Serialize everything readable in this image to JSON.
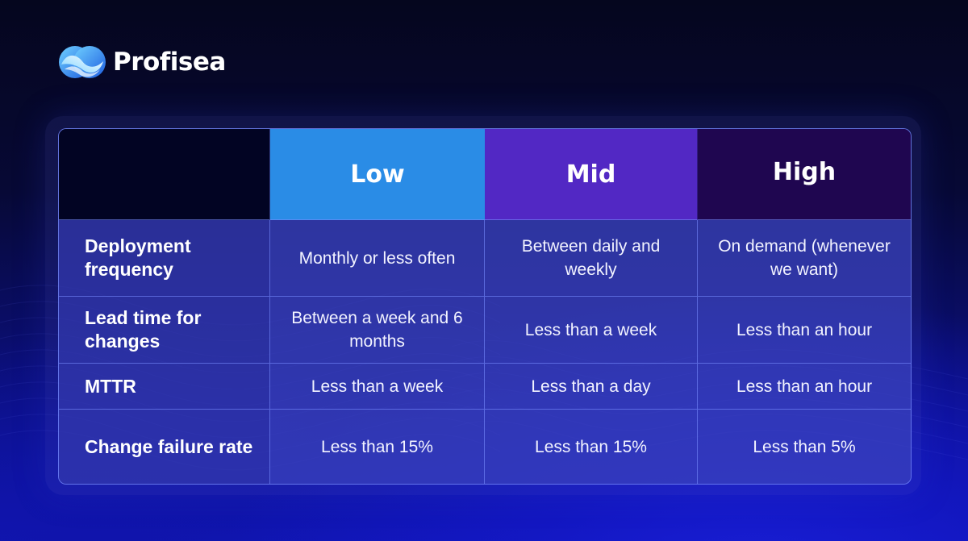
{
  "brand": {
    "name": "Profisea"
  },
  "colors": {
    "background_top": "#05061e",
    "background_bottom": "#1016b4",
    "low_header": "#2a8ce6",
    "mid_header": "#5228c4",
    "high_header": "#1f0650",
    "corner": "#020423"
  },
  "table": {
    "columns": [
      "",
      "Low",
      "Mid",
      "High"
    ],
    "rows": [
      {
        "label": "Deployment frequency",
        "low": "Monthly or less often",
        "mid": "Between daily and weekly",
        "high": "On demand (whenever we want)"
      },
      {
        "label": "Lead time for changes",
        "low": "Between a week and 6 months",
        "mid": "Less than a week",
        "high": "Less than an hour"
      },
      {
        "label": "MTTR",
        "low": "Less than a week",
        "mid": "Less than a day",
        "high": "Less than an hour"
      },
      {
        "label": "Change failure rate",
        "low": "Less than 15%",
        "mid": "Less than 15%",
        "high": "Less than 5%"
      }
    ]
  }
}
